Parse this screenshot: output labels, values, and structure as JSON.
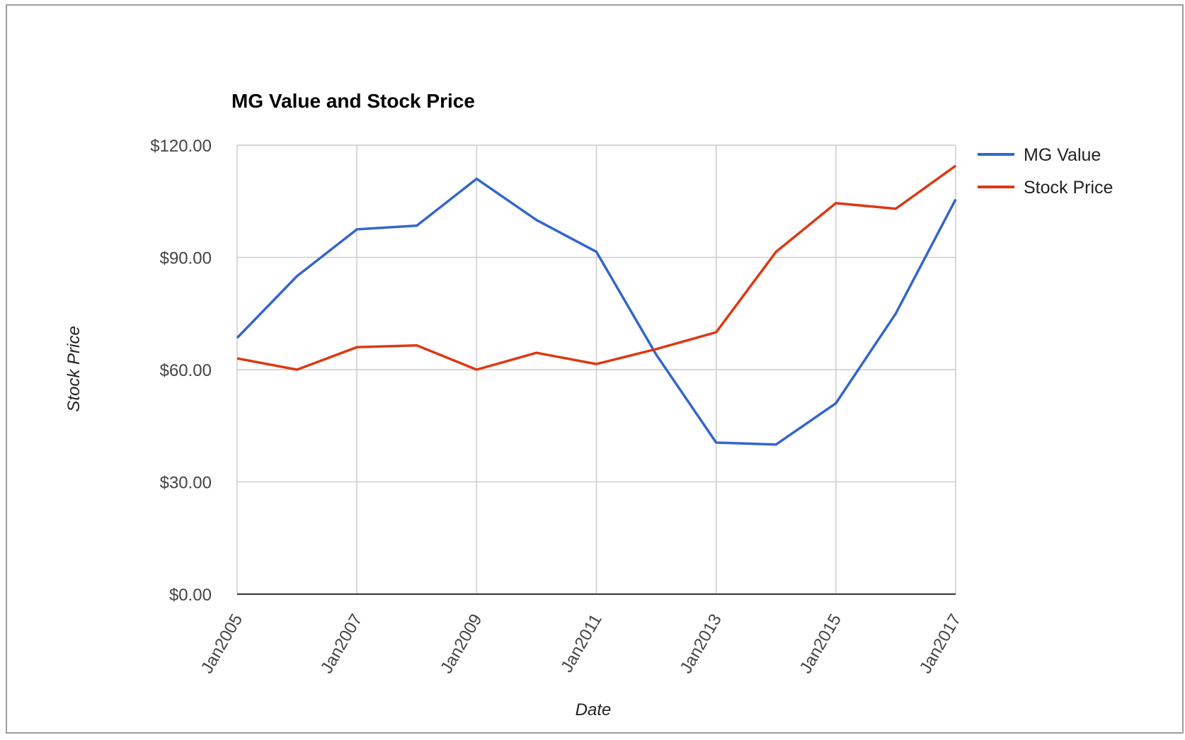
{
  "chart_data": {
    "type": "line",
    "title": "MG Value and Stock Price",
    "xlabel": "Date",
    "ylabel": "Stock Price",
    "x": [
      "Jan2005",
      "Jan2006",
      "Jan2007",
      "Jan2008",
      "Jan2009",
      "Jan2010",
      "Jan2011",
      "Jan2012",
      "Jan2013",
      "Jan2014",
      "Jan2015",
      "Jan2016",
      "Jan2017"
    ],
    "x_tick_labels": [
      "Jan2005",
      "Jan2007",
      "Jan2009",
      "Jan2011",
      "Jan2013",
      "Jan2015",
      "Jan2017"
    ],
    "y_tick_labels": [
      "$0.00",
      "$30.00",
      "$60.00",
      "$90.00",
      "$120.00"
    ],
    "y_ticks": [
      0,
      30,
      60,
      90,
      120
    ],
    "ylim": [
      0,
      120
    ],
    "grid": true,
    "legend_position": "right",
    "series": [
      {
        "name": "MG Value",
        "color": "#3366cc",
        "values": [
          68.5,
          85,
          97.5,
          98.5,
          111,
          100,
          91.5,
          64,
          40.5,
          40,
          51,
          75,
          105.5
        ]
      },
      {
        "name": "Stock Price",
        "color": "#dc3912",
        "values": [
          63,
          60,
          66,
          66.5,
          60,
          64.5,
          61.5,
          65.5,
          70,
          91.5,
          104.5,
          103,
          114.5
        ]
      }
    ]
  }
}
